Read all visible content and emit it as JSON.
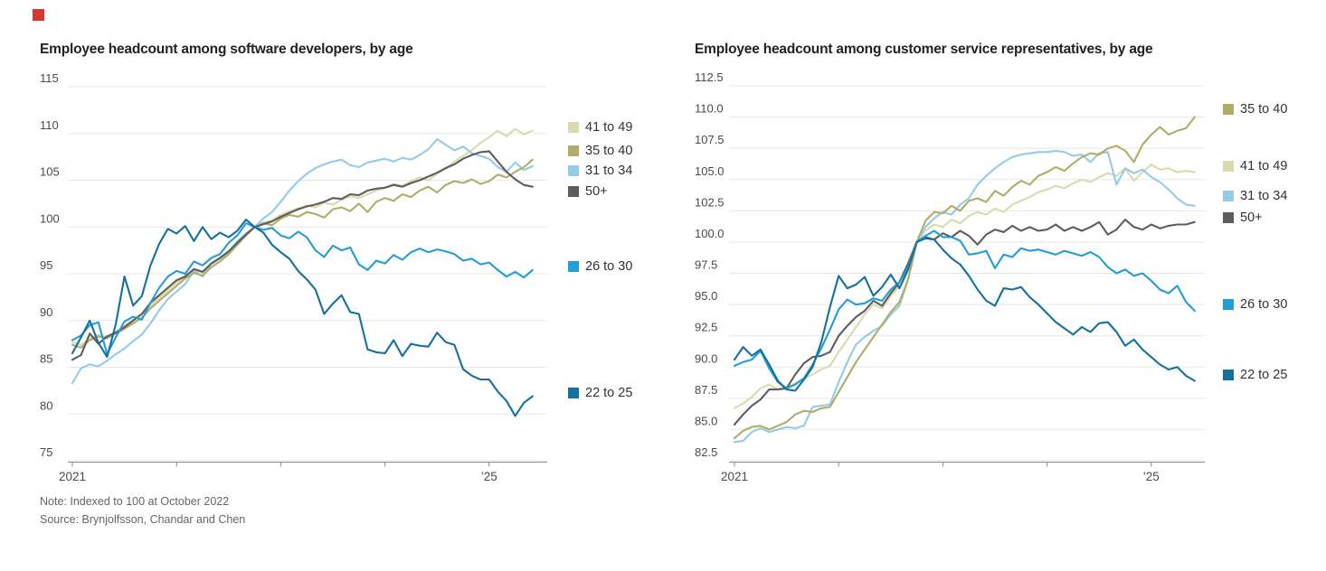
{
  "brand": {
    "accent_red": "#d6372e"
  },
  "footnotes": {
    "note": "Note: Indexed to 100 at October 2022",
    "source": "Source: Brynjolfsson, Chandar and Chen"
  },
  "colors": {
    "grid": "#e8e8e6",
    "axis": "#8c8c8c",
    "tick_text": "#4a4a4a"
  },
  "chart_data": [
    {
      "type": "line",
      "title": "Employee headcount among software developers, by age",
      "x_unit": "monthly, Jan 2021 - Jun 2025",
      "index_note": "Indexed to 100 at October 2022",
      "y_tick_labels": [
        "115",
        "110",
        "105",
        "100",
        "95",
        "90",
        "85",
        "80",
        "75"
      ],
      "y_tick_values": [
        115,
        110,
        105,
        100,
        95,
        90,
        85,
        80,
        75
      ],
      "ylim": [
        75,
        115
      ],
      "x_tick_months": [
        0,
        12,
        24,
        36,
        48
      ],
      "x_tick_labels": [
        "2021",
        "",
        "",
        "",
        "’25"
      ],
      "grid": true,
      "legend_position": "right",
      "legend": [
        {
          "label": "41 to 49",
          "color": "#dbdaae"
        },
        {
          "label": "35 to 40",
          "color": "#b0ad68"
        },
        {
          "label": "31 to 34",
          "color": "#93cbe9"
        },
        {
          "label": "50+",
          "color": "#5d5d5d"
        },
        {
          "label": "26 to 30",
          "color": "#229dd8"
        },
        {
          "label": "22 to 25",
          "color": "#14719e"
        }
      ],
      "series": [
        {
          "name": "41 to 49",
          "color": "#dbdaae",
          "values": [
            87.7,
            87.4,
            88.1,
            88.5,
            88.2,
            88.8,
            89.4,
            90.1,
            90.7,
            91.6,
            92.4,
            93.2,
            94.0,
            94.8,
            95.4,
            95.1,
            96.0,
            96.6,
            97.4,
            98.4,
            99.3,
            100.0,
            100.5,
            100.7,
            101.3,
            101.7,
            102.0,
            102.3,
            102.1,
            102.6,
            102.4,
            102.9,
            103.3,
            103.1,
            103.5,
            103.9,
            104.2,
            104.6,
            104.4,
            104.9,
            105.3,
            105.0,
            105.7,
            106.2,
            107.0,
            107.6,
            108.2,
            109.0,
            109.6,
            110.3,
            109.7,
            110.5,
            109.9,
            110.3
          ]
        },
        {
          "name": "31 to 34",
          "color": "#93cbe9",
          "values": [
            83.3,
            84.9,
            85.3,
            85.1,
            85.7,
            86.4,
            87.0,
            87.8,
            88.5,
            89.7,
            91.1,
            92.3,
            93.1,
            93.9,
            95.3,
            94.7,
            96.1,
            96.6,
            97.3,
            98.5,
            99.3,
            100.0,
            100.9,
            101.6,
            102.7,
            103.9,
            104.9,
            105.7,
            106.3,
            106.7,
            107.0,
            107.2,
            106.6,
            106.4,
            106.9,
            107.1,
            107.3,
            107.0,
            107.4,
            107.2,
            107.7,
            108.3,
            109.4,
            108.8,
            108.2,
            108.6,
            107.9,
            107.6,
            107.3,
            106.4,
            105.9,
            106.9,
            106.1,
            106.5
          ]
        },
        {
          "name": "35 to 40",
          "color": "#b0ad68",
          "values": [
            87.4,
            87.1,
            87.9,
            88.3,
            88.1,
            88.6,
            89.1,
            89.7,
            90.3,
            91.3,
            92.1,
            92.9,
            93.7,
            94.5,
            95.1,
            94.8,
            95.7,
            96.3,
            97.1,
            98.1,
            99.1,
            100.0,
            100.4,
            100.2,
            100.9,
            101.3,
            101.1,
            101.6,
            101.4,
            101.0,
            101.9,
            102.1,
            101.7,
            102.5,
            101.6,
            102.7,
            103.1,
            102.8,
            103.5,
            103.2,
            103.9,
            104.3,
            103.7,
            104.5,
            104.9,
            104.7,
            105.1,
            104.6,
            104.9,
            105.6,
            105.3,
            105.9,
            106.4,
            107.2
          ]
        },
        {
          "name": "50+",
          "color": "#5d5d5d",
          "values": [
            85.8,
            86.3,
            88.6,
            87.5,
            88.3,
            88.7,
            89.3,
            90.0,
            90.7,
            91.9,
            92.7,
            93.5,
            94.3,
            94.7,
            95.5,
            95.2,
            96.1,
            96.7,
            97.4,
            98.3,
            99.2,
            100.0,
            100.3,
            100.6,
            101.1,
            101.5,
            101.9,
            102.2,
            102.4,
            102.7,
            103.1,
            103.0,
            103.5,
            103.4,
            103.9,
            104.1,
            104.2,
            104.5,
            104.3,
            104.7,
            105.0,
            105.4,
            105.8,
            106.3,
            106.7,
            107.3,
            107.7,
            108.0,
            108.1,
            107.0,
            105.9,
            105.1,
            104.5,
            104.3
          ]
        },
        {
          "name": "26 to 30",
          "color": "#229dd8",
          "values": [
            87.9,
            88.4,
            89.5,
            89.8,
            86.4,
            88.2,
            89.9,
            90.4,
            90.1,
            91.9,
            93.5,
            94.7,
            95.3,
            95.0,
            96.3,
            95.9,
            96.7,
            97.1,
            98.3,
            99.1,
            100.4,
            100.0,
            99.7,
            99.9,
            99.1,
            98.8,
            99.5,
            98.9,
            97.5,
            96.8,
            98.0,
            97.5,
            97.8,
            96.0,
            95.4,
            96.4,
            96.1,
            97.0,
            96.5,
            97.3,
            97.7,
            97.3,
            97.6,
            97.4,
            97.1,
            96.4,
            96.6,
            96.0,
            96.2,
            95.4,
            94.7,
            95.2,
            94.6,
            95.4
          ]
        },
        {
          "name": "22 to 25",
          "color": "#14719e",
          "values": [
            86.5,
            88.2,
            90.0,
            87.6,
            86.1,
            89.6,
            94.7,
            91.6,
            92.6,
            95.9,
            98.2,
            99.8,
            99.3,
            100.1,
            98.5,
            100.0,
            98.7,
            99.4,
            98.9,
            99.6,
            100.8,
            100.0,
            99.4,
            98.1,
            97.3,
            96.6,
            95.3,
            94.4,
            93.3,
            90.7,
            91.8,
            92.7,
            90.9,
            90.7,
            86.9,
            86.6,
            86.5,
            87.9,
            86.2,
            87.5,
            87.3,
            87.2,
            88.7,
            87.7,
            87.4,
            84.8,
            84.1,
            83.7,
            83.7,
            82.4,
            81.4,
            79.8,
            81.2,
            81.9
          ]
        }
      ]
    },
    {
      "type": "line",
      "title": "Employee headcount among customer service representatives, by age",
      "x_unit": "monthly, Jan 2021 - Jun 2025",
      "index_note": "Indexed to 100 at October 2022",
      "y_tick_labels": [
        "112.5",
        "110.0",
        "107.5",
        "105.0",
        "102.5",
        "100.0",
        "97.5",
        "95.0",
        "92.5",
        "90.0",
        "87.5",
        "85.0",
        "82.5"
      ],
      "y_tick_values": [
        112.5,
        110.0,
        107.5,
        105.0,
        102.5,
        100.0,
        97.5,
        95.0,
        92.5,
        90.0,
        87.5,
        85.0,
        82.5
      ],
      "ylim": [
        82.5,
        112.5
      ],
      "x_tick_months": [
        0,
        12,
        24,
        36,
        48
      ],
      "x_tick_labels": [
        "2021",
        "",
        "",
        "",
        "’25"
      ],
      "grid": true,
      "legend_position": "right",
      "legend": [
        {
          "label": "35 to 40",
          "color": "#b0ad68"
        },
        {
          "label": "41 to 49",
          "color": "#dbdaae"
        },
        {
          "label": "31 to 34",
          "color": "#93cbe9"
        },
        {
          "label": "50+",
          "color": "#5d5d5d"
        },
        {
          "label": "26 to 30",
          "color": "#229dd8"
        },
        {
          "label": "22 to 25",
          "color": "#14719e"
        }
      ],
      "series": [
        {
          "name": "41 to 49",
          "color": "#dbdaae",
          "values": [
            86.7,
            87.1,
            87.6,
            88.3,
            88.6,
            88.2,
            88.4,
            88.7,
            89.1,
            89.4,
            89.8,
            90.1,
            91.2,
            92.2,
            93.2,
            94.2,
            95.0,
            94.7,
            95.7,
            96.5,
            97.8,
            100.0,
            100.9,
            101.4,
            101.2,
            101.8,
            101.5,
            102.1,
            102.4,
            102.2,
            102.7,
            102.4,
            103.0,
            103.3,
            103.6,
            104.0,
            104.2,
            104.5,
            104.3,
            104.7,
            105.0,
            104.8,
            105.2,
            105.5,
            105.3,
            105.9,
            104.9,
            105.6,
            106.2,
            105.8,
            105.9,
            105.6,
            105.7,
            105.6
          ]
        },
        {
          "name": "31 to 34",
          "color": "#93cbe9",
          "values": [
            84.0,
            84.1,
            84.8,
            85.1,
            84.8,
            85.0,
            85.2,
            85.1,
            85.3,
            86.8,
            86.9,
            87.0,
            88.8,
            90.4,
            91.8,
            92.4,
            92.9,
            93.3,
            94.2,
            94.9,
            97.0,
            100.0,
            101.2,
            101.9,
            102.4,
            102.2,
            103.0,
            103.5,
            104.6,
            105.3,
            105.9,
            106.4,
            106.8,
            107.0,
            107.1,
            107.2,
            107.2,
            107.3,
            107.2,
            106.9,
            107.0,
            106.4,
            107.1,
            107.2,
            104.6,
            105.9,
            105.5,
            105.8,
            105.2,
            104.8,
            104.2,
            103.5,
            103.0,
            102.9
          ]
        },
        {
          "name": "35 to 40",
          "color": "#b0ad68",
          "values": [
            84.3,
            84.9,
            85.2,
            85.3,
            85.0,
            85.3,
            85.6,
            86.2,
            86.5,
            86.4,
            86.7,
            86.8,
            88.0,
            89.2,
            90.4,
            91.4,
            92.4,
            93.4,
            94.4,
            95.2,
            97.0,
            100.0,
            101.7,
            102.4,
            102.3,
            102.9,
            102.5,
            103.3,
            103.5,
            103.2,
            104.1,
            103.7,
            104.4,
            104.9,
            104.6,
            105.3,
            105.6,
            106.0,
            105.7,
            106.3,
            106.8,
            107.1,
            107.0,
            107.5,
            107.7,
            107.3,
            106.4,
            107.8,
            108.6,
            109.2,
            108.6,
            108.9,
            109.1,
            110.0
          ]
        },
        {
          "name": "50+",
          "color": "#5d5d5d",
          "values": [
            85.4,
            86.2,
            86.9,
            87.4,
            88.2,
            88.2,
            88.3,
            89.4,
            90.3,
            90.8,
            90.9,
            91.2,
            92.5,
            93.3,
            94.0,
            94.5,
            95.3,
            94.9,
            95.9,
            96.8,
            98.3,
            100.0,
            100.4,
            100.2,
            100.7,
            100.4,
            100.9,
            100.5,
            99.8,
            100.6,
            101.0,
            100.8,
            101.3,
            100.9,
            101.2,
            100.9,
            101.0,
            101.4,
            100.9,
            101.2,
            100.9,
            101.2,
            101.6,
            100.6,
            101.0,
            101.8,
            101.2,
            101.0,
            101.4,
            101.1,
            101.3,
            101.4,
            101.4,
            101.6
          ]
        },
        {
          "name": "26 to 30",
          "color": "#229dd8",
          "values": [
            90.1,
            90.4,
            90.6,
            91.3,
            89.9,
            88.8,
            88.3,
            88.6,
            89.1,
            90.2,
            91.5,
            93.0,
            94.6,
            95.4,
            95.0,
            95.1,
            95.5,
            95.3,
            96.2,
            96.8,
            98.0,
            100.0,
            100.5,
            100.9,
            100.4,
            100.4,
            100.1,
            99.0,
            99.1,
            99.3,
            97.9,
            99.0,
            98.8,
            99.5,
            99.3,
            99.4,
            99.2,
            99.0,
            99.3,
            99.1,
            98.9,
            99.2,
            98.8,
            98.0,
            97.5,
            97.8,
            97.3,
            97.5,
            96.9,
            96.2,
            95.9,
            96.5,
            95.2,
            94.5
          ]
        },
        {
          "name": "22 to 25",
          "color": "#14719e",
          "values": [
            90.6,
            91.6,
            90.9,
            91.4,
            90.2,
            88.9,
            88.2,
            88.1,
            89.0,
            90.0,
            92.0,
            94.8,
            97.3,
            96.3,
            96.6,
            97.2,
            95.7,
            96.4,
            97.4,
            96.3,
            97.8,
            100.0,
            100.3,
            100.2,
            99.4,
            98.7,
            98.2,
            97.3,
            96.2,
            95.3,
            94.9,
            96.3,
            96.2,
            96.4,
            95.6,
            95.0,
            94.3,
            93.6,
            93.1,
            92.6,
            93.2,
            92.8,
            93.5,
            93.6,
            92.8,
            91.7,
            92.2,
            91.4,
            90.8,
            90.2,
            89.8,
            90.0,
            89.3,
            88.9
          ]
        }
      ]
    }
  ]
}
